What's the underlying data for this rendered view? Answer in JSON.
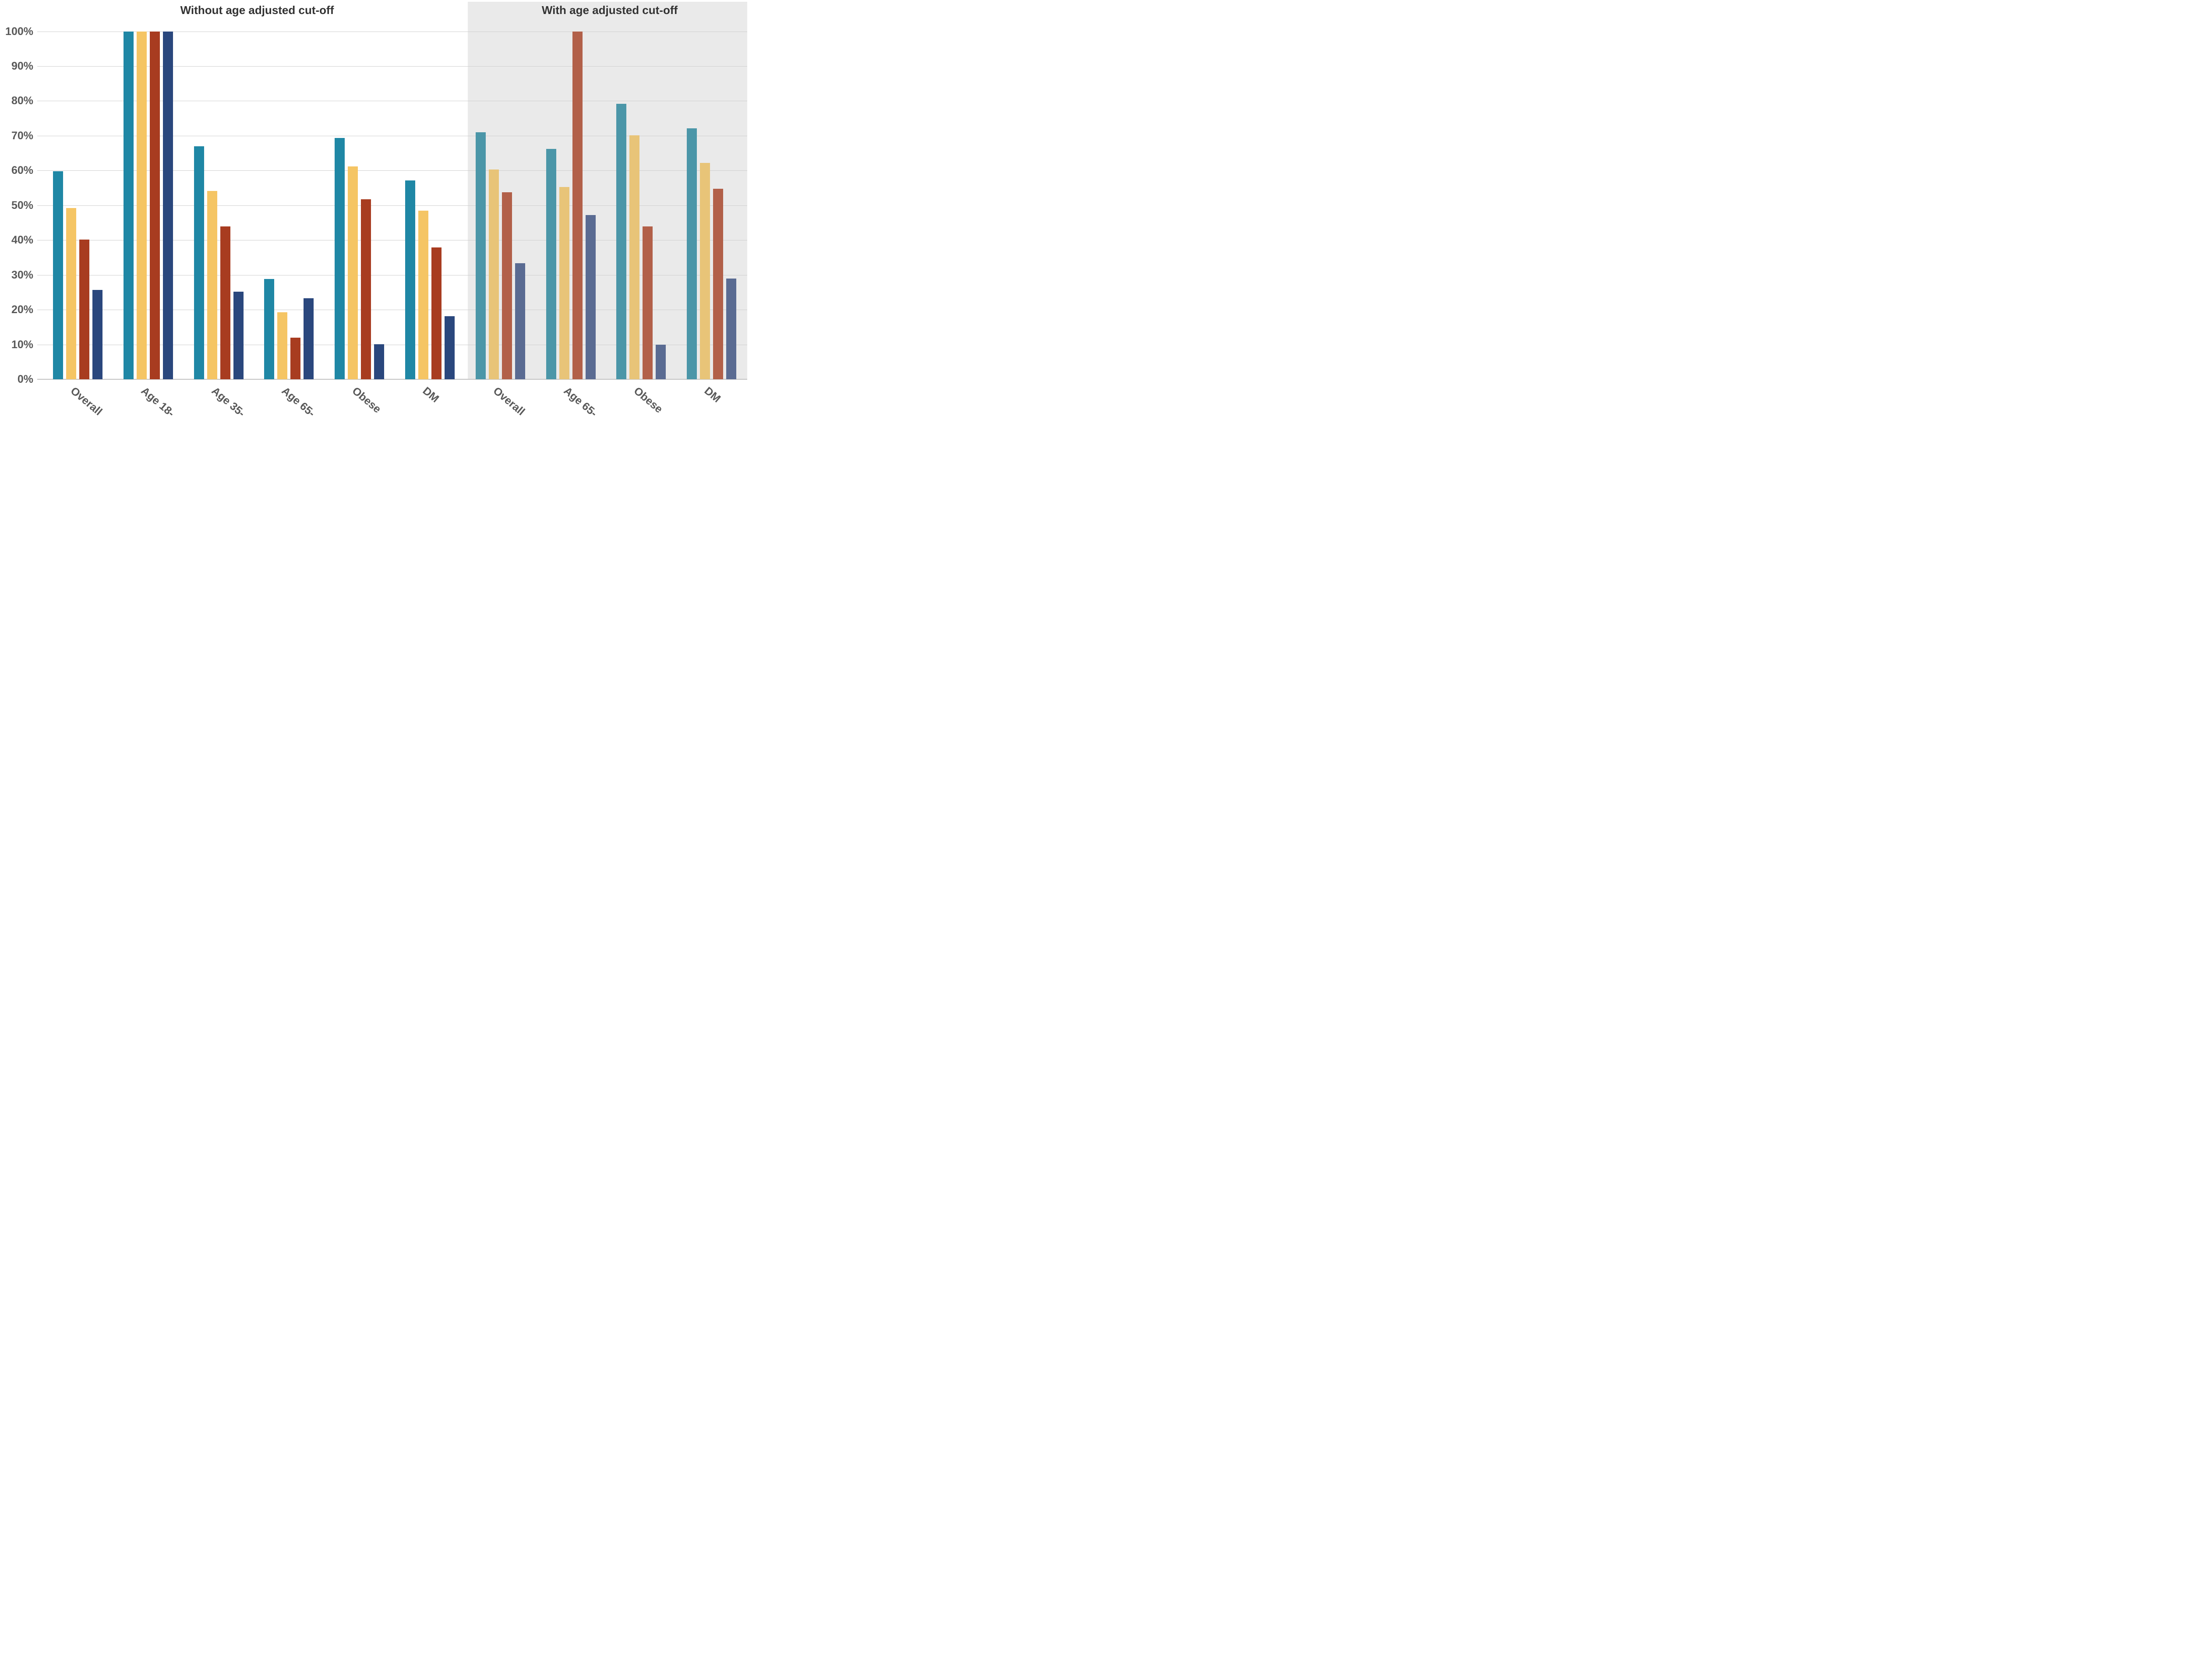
{
  "chart_data": {
    "type": "bar",
    "orientation": "vertical-grouped",
    "ylabel": "",
    "xlabel": "",
    "y_axis": {
      "min": 0,
      "max": 100,
      "tick_step": 10,
      "tick_labels": [
        "0%",
        "10%",
        "20%",
        "30%",
        "40%",
        "50%",
        "60%",
        "70%",
        "80%",
        "90%",
        "100%"
      ],
      "grid": true,
      "unit": "percent"
    },
    "legend": {
      "visible": false
    },
    "series_count": 4,
    "sections": [
      {
        "title": "Without age adjusted cut-off",
        "panel_background": "#ffffff",
        "series_colors": [
          "#1f87a5",
          "#f5c564",
          "#a83c20",
          "#2a477d"
        ],
        "groups": [
          {
            "label": "Overall",
            "values": [
              59.8,
              49.2,
              40.2,
              25.7
            ]
          },
          {
            "label": "Age 18-",
            "values": [
              100,
              100,
              100,
              100
            ]
          },
          {
            "label": "Age 35-",
            "values": [
              66.9,
              54.1,
              43.9,
              25.2
            ]
          },
          {
            "label": "Age 65-",
            "values": [
              28.8,
              19.3,
              11.9,
              23.3
            ]
          },
          {
            "label": "Obese",
            "values": [
              69.3,
              61.2,
              51.7,
              10.1
            ]
          },
          {
            "label": "DM",
            "values": [
              57.2,
              48.4,
              37.9,
              18.1
            ]
          }
        ]
      },
      {
        "title": "With age adjusted cut-off",
        "panel_background": "#eaeaea",
        "series_colors": [
          "#4b96a8",
          "#e8c478",
          "#b26049",
          "#5a6b92"
        ],
        "groups": [
          {
            "label": "Overall",
            "values": [
              71.0,
              60.3,
              53.8,
              33.4
            ]
          },
          {
            "label": "Age 65-",
            "values": [
              66.2,
              55.3,
              100,
              47.2
            ]
          },
          {
            "label": "Obese",
            "values": [
              79.2,
              70.1,
              43.9,
              10.0
            ]
          },
          {
            "label": "DM",
            "values": [
              72.1,
              62.2,
              54.7,
              28.9
            ]
          }
        ]
      }
    ],
    "colors": {
      "grid_line": "#cfcfcf",
      "axis_line": "#c2c2c2",
      "tick_text": "#595959",
      "title_text": "#333333"
    }
  }
}
